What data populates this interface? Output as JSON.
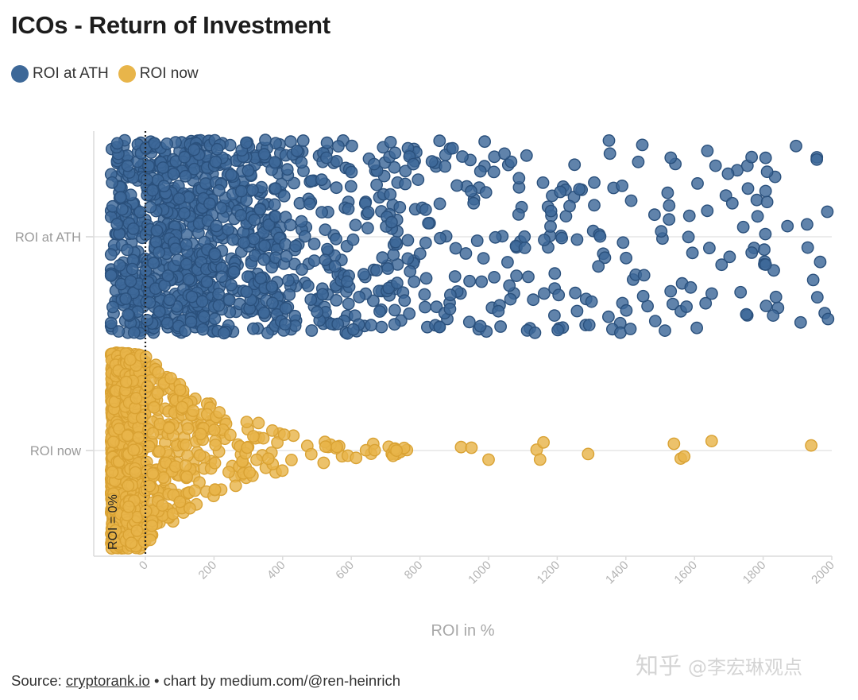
{
  "header": {
    "title": "ICOs - Return of Investment"
  },
  "legend": [
    {
      "label": "ROI at ATH",
      "color": "#3d6898"
    },
    {
      "label": "ROI now",
      "color": "#e8b54a"
    }
  ],
  "footer": {
    "source_prefix": "Source: ",
    "source_link": "cryptorank.io",
    "source_suffix": " • chart by medium.com/@ren-heinrich"
  },
  "watermark": {
    "site": "知乎",
    "author": "@李宏琳观点"
  },
  "chart_data": {
    "type": "beeswarm",
    "title": "ICOs - Return of Investment",
    "xlabel": "ROI in %",
    "ylabel": "",
    "xlim": [
      -150,
      2000
    ],
    "xticks": [
      0,
      200,
      400,
      600,
      800,
      1000,
      1200,
      1400,
      1600,
      1800,
      2000
    ],
    "xtick_labels": [
      "0",
      "200",
      "400",
      "600",
      "800",
      "1000",
      "1200",
      "1400",
      "1600",
      "1800",
      "2000"
    ],
    "categories": [
      "ROI at ATH",
      "ROI now"
    ],
    "reference_line": {
      "x": 0,
      "label": "ROI = 0%"
    },
    "series": [
      {
        "name": "ROI at ATH",
        "color": "#3d6898",
        "distribution": [
          {
            "range": [
              -110,
              0
            ],
            "count": 160
          },
          {
            "range": [
              0,
              200
            ],
            "count": 420
          },
          {
            "range": [
              200,
              400
            ],
            "count": 250
          },
          {
            "range": [
              400,
              600
            ],
            "count": 120
          },
          {
            "range": [
              600,
              800
            ],
            "count": 90
          },
          {
            "range": [
              800,
              1000
            ],
            "count": 55
          },
          {
            "range": [
              1000,
              1200
            ],
            "count": 45
          },
          {
            "range": [
              1200,
              1400
            ],
            "count": 40
          },
          {
            "range": [
              1400,
              1600
            ],
            "count": 30
          },
          {
            "range": [
              1600,
              1800
            ],
            "count": 25
          },
          {
            "range": [
              1800,
              2000
            ],
            "count": 28
          }
        ]
      },
      {
        "name": "ROI now",
        "color": "#e8b54a",
        "distribution": [
          {
            "range": [
              -100,
              -60
            ],
            "count": 900
          },
          {
            "range": [
              -60,
              0
            ],
            "count": 260
          },
          {
            "range": [
              0,
              100
            ],
            "count": 140
          },
          {
            "range": [
              100,
              200
            ],
            "count": 70
          },
          {
            "range": [
              200,
              300
            ],
            "count": 35
          },
          {
            "range": [
              300,
              400
            ],
            "count": 18
          },
          {
            "range": [
              400,
              600
            ],
            "count": 15
          },
          {
            "range": [
              600,
              800
            ],
            "count": 16
          }
        ],
        "outliers": [
          920,
          950,
          1000,
          1140,
          1150,
          1160,
          1290,
          1540,
          1560,
          1570,
          1650,
          1940
        ]
      }
    ]
  }
}
